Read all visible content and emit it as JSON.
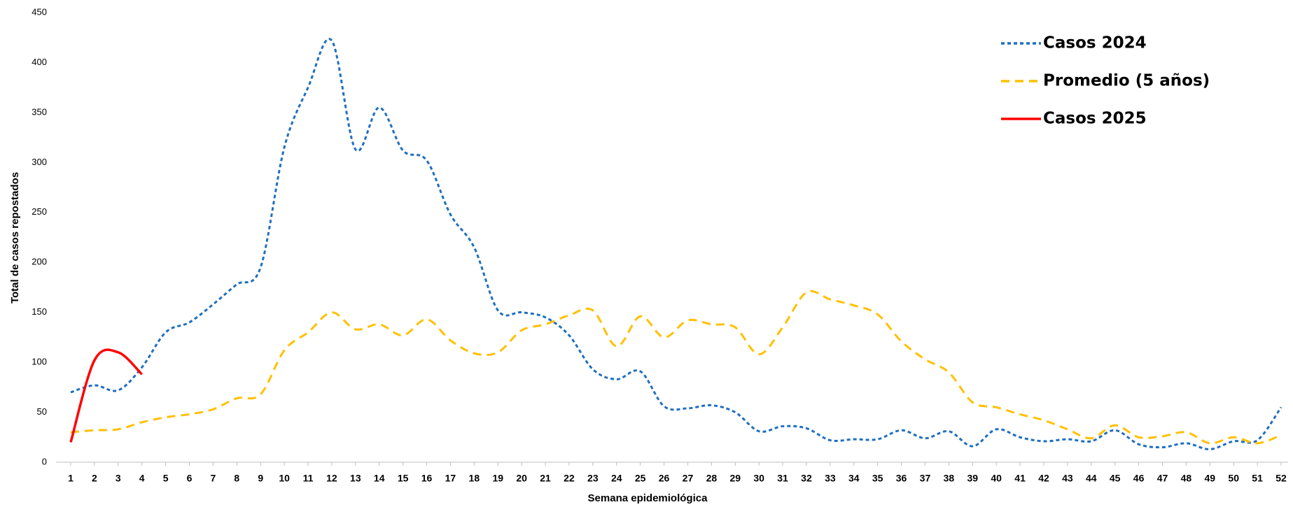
{
  "chart_data": {
    "type": "line",
    "x_label": "Semana epidemiológica",
    "y_label": "Total de casos repostados",
    "x": [
      1,
      2,
      3,
      4,
      5,
      6,
      7,
      8,
      9,
      10,
      11,
      12,
      13,
      14,
      15,
      16,
      17,
      18,
      19,
      20,
      21,
      22,
      23,
      24,
      25,
      26,
      27,
      28,
      29,
      30,
      31,
      32,
      33,
      34,
      35,
      36,
      37,
      38,
      39,
      40,
      41,
      42,
      43,
      44,
      45,
      46,
      47,
      48,
      49,
      50,
      51,
      52
    ],
    "xlim": [
      1,
      52
    ],
    "ylim": [
      0,
      450
    ],
    "yticks": [
      0,
      50,
      100,
      150,
      200,
      250,
      300,
      350,
      400,
      450
    ],
    "series": [
      {
        "name": "Casos 2024",
        "color": "#1f6fbf",
        "dash": "5,4",
        "values": [
          70,
          77,
          72,
          95,
          130,
          140,
          158,
          178,
          195,
          315,
          375,
          422,
          313,
          355,
          312,
          302,
          248,
          215,
          152,
          150,
          145,
          127,
          93,
          83,
          91,
          56,
          54,
          57,
          50,
          31,
          36,
          34,
          22,
          23,
          23,
          32,
          24,
          31,
          16,
          33,
          25,
          21,
          23,
          21,
          32,
          18,
          15,
          19,
          13,
          21,
          22,
          55
        ]
      },
      {
        "name": "Promedio (5 años)",
        "color": "#ffc000",
        "dash": "12,8",
        "values": [
          30,
          32,
          33,
          40,
          45,
          48,
          53,
          64,
          68,
          112,
          130,
          150,
          133,
          138,
          127,
          143,
          122,
          109,
          110,
          132,
          138,
          147,
          152,
          116,
          146,
          125,
          142,
          138,
          135,
          108,
          135,
          170,
          163,
          157,
          148,
          121,
          103,
          90,
          60,
          55,
          48,
          42,
          33,
          24,
          37,
          25,
          26,
          30,
          19,
          25,
          19,
          27
        ]
      },
      {
        "name": "Casos 2025",
        "color": "#ff0000",
        "dash": "none",
        "values": [
          20,
          102,
          110,
          88,
          null,
          null,
          null,
          null,
          null,
          null,
          null,
          null,
          null,
          null,
          null,
          null,
          null,
          null,
          null,
          null,
          null,
          null,
          null,
          null,
          null,
          null,
          null,
          null,
          null,
          null,
          null,
          null,
          null,
          null,
          null,
          null,
          null,
          null,
          null,
          null,
          null,
          null,
          null,
          null,
          null,
          null,
          null,
          null,
          null,
          null,
          null,
          null
        ]
      }
    ]
  }
}
